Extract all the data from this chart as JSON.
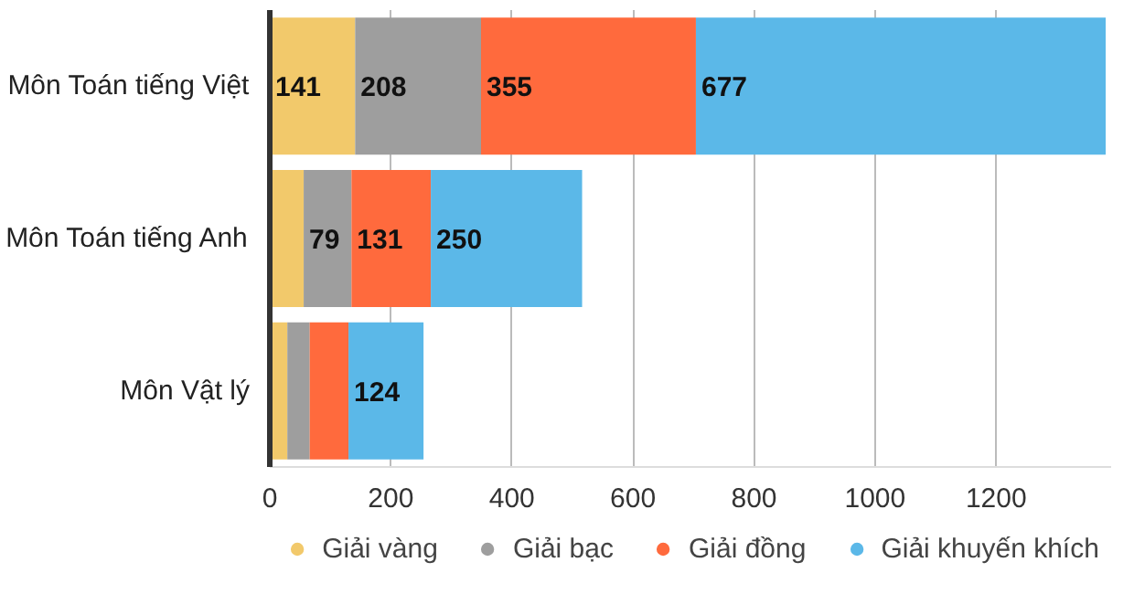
{
  "chart_data": {
    "type": "bar",
    "orientation": "horizontal",
    "stacked": true,
    "categories": [
      "Môn Toán tiếng Việt",
      "Môn Toán tiếng Anh",
      "Môn Vật lý"
    ],
    "series": [
      {
        "name": "Giải vàng",
        "color": "#f2c96b",
        "values": [
          141,
          56,
          29
        ],
        "value_labels": [
          "141",
          null,
          null
        ]
      },
      {
        "name": "Giải bạc",
        "color": "#9e9e9e",
        "values": [
          208,
          79,
          37
        ],
        "value_labels": [
          "208",
          "79",
          null
        ]
      },
      {
        "name": "Giải đồng",
        "color": "#ff6a3d",
        "values": [
          355,
          131,
          64
        ],
        "value_labels": [
          "355",
          "131",
          null
        ]
      },
      {
        "name": "Giải khuyến khích",
        "color": "#5bb8e8",
        "values": [
          677,
          250,
          124
        ],
        "value_labels": [
          "677",
          "250",
          "124"
        ]
      }
    ],
    "xlim": [
      0,
      1390
    ],
    "xticks": [
      0,
      200,
      400,
      600,
      800,
      1000,
      1200
    ],
    "grid": "x",
    "legend": "bottom"
  }
}
